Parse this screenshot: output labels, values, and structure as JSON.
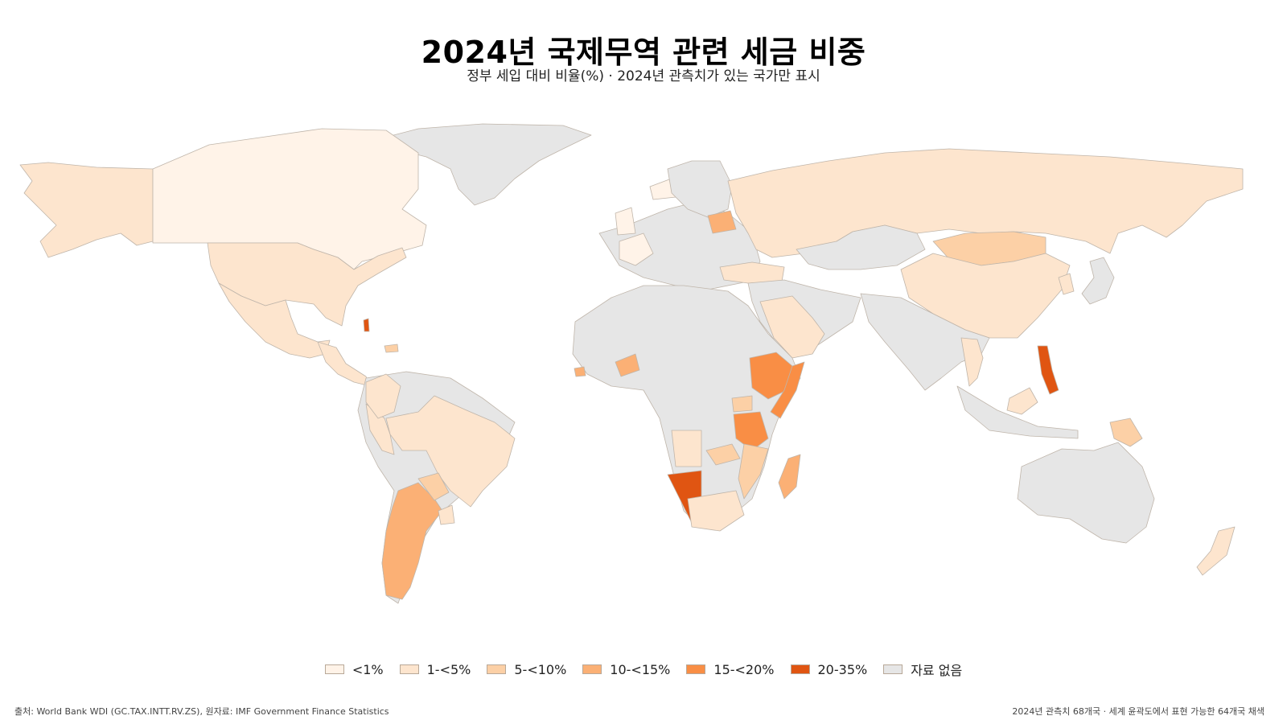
{
  "title": "2024년 국제무역 관련 세금 비중",
  "subtitle": "정부 세입 대비 비율(%) · 2024년 관측치가 있는 국가만 표시",
  "legend": [
    {
      "label": "<1%",
      "color": "#fff3e8"
    },
    {
      "label": "1-<5%",
      "color": "#fde5ce"
    },
    {
      "label": "5-<10%",
      "color": "#fcd0a6"
    },
    {
      "label": "10-<15%",
      "color": "#fbb075"
    },
    {
      "label": "15-<20%",
      "color": "#f98e45"
    },
    {
      "label": "20-35%",
      "color": "#e05512"
    },
    {
      "label": "자료 없음",
      "color": "#e6e6e6"
    }
  ],
  "nodata_color": "#e6e6e6",
  "map_regions": [
    {
      "name": "greenland",
      "class": "자료 없음"
    },
    {
      "name": "alaska",
      "class": "1-<5%"
    },
    {
      "name": "canada",
      "class": "<1%"
    },
    {
      "name": "usa",
      "class": "1-<5%"
    },
    {
      "name": "mexico",
      "class": "1-<5%"
    },
    {
      "name": "central-america",
      "class": "1-<5%"
    },
    {
      "name": "bahamas",
      "class": "20-35%"
    },
    {
      "name": "dominican-republic",
      "class": "5-<10%"
    },
    {
      "name": "south-america-nodata",
      "class": "자료 없음"
    },
    {
      "name": "brazil",
      "class": "1-<5%"
    },
    {
      "name": "peru",
      "class": "1-<5%"
    },
    {
      "name": "colombia",
      "class": "1-<5%"
    },
    {
      "name": "argentina",
      "class": "10-<15%"
    },
    {
      "name": "paraguay",
      "class": "5-<10%"
    },
    {
      "name": "uruguay",
      "class": "1-<5%"
    },
    {
      "name": "iceland",
      "class": "<1%"
    },
    {
      "name": "europe-nodata",
      "class": "자료 없음"
    },
    {
      "name": "france",
      "class": "<1%"
    },
    {
      "name": "uk",
      "class": "<1%"
    },
    {
      "name": "scandinavia",
      "class": "자료 없음"
    },
    {
      "name": "belarus",
      "class": "10-<15%"
    },
    {
      "name": "turkey",
      "class": "1-<5%"
    },
    {
      "name": "russia",
      "class": "1-<5%"
    },
    {
      "name": "kazakhstan",
      "class": "자료 없음"
    },
    {
      "name": "mongolia",
      "class": "5-<10%"
    },
    {
      "name": "china",
      "class": "1-<5%"
    },
    {
      "name": "middle-east-nodata",
      "class": "자료 없음"
    },
    {
      "name": "saudi-arabia",
      "class": "1-<5%"
    },
    {
      "name": "south-asia-nodata",
      "class": "자료 없음"
    },
    {
      "name": "thailand",
      "class": "1-<5%"
    },
    {
      "name": "philippines",
      "class": "20-35%"
    },
    {
      "name": "borneo",
      "class": "1-<5%"
    },
    {
      "name": "indonesia",
      "class": "자료 없음"
    },
    {
      "name": "papua-new-guinea",
      "class": "5-<10%"
    },
    {
      "name": "japan",
      "class": "자료 없음"
    },
    {
      "name": "korea",
      "class": "1-<5%"
    },
    {
      "name": "africa-nodata",
      "class": "자료 없음"
    },
    {
      "name": "burkina-faso",
      "class": "10-<15%"
    },
    {
      "name": "sierra-leone",
      "class": "10-<15%"
    },
    {
      "name": "ethiopia",
      "class": "15-<20%"
    },
    {
      "name": "somalia",
      "class": "15-<20%"
    },
    {
      "name": "uganda",
      "class": "5-<10%"
    },
    {
      "name": "tanzania",
      "class": "15-<20%"
    },
    {
      "name": "zambia",
      "class": "5-<10%"
    },
    {
      "name": "angola",
      "class": "1-<5%"
    },
    {
      "name": "mozambique",
      "class": "5-<10%"
    },
    {
      "name": "namibia",
      "class": "20-35%"
    },
    {
      "name": "south-africa",
      "class": "1-<5%"
    },
    {
      "name": "madagascar",
      "class": "10-<15%"
    },
    {
      "name": "australia",
      "class": "자료 없음"
    },
    {
      "name": "new-zealand",
      "class": "1-<5%"
    }
  ],
  "footer": {
    "source": "출처: World Bank WDI (GC.TAX.INTT.RV.ZS), 원자료: IMF Government Finance Statistics",
    "note": "2024년 관측치 68개국 · 세계 윤곽도에서 표현 가능한 64개국 채색"
  }
}
